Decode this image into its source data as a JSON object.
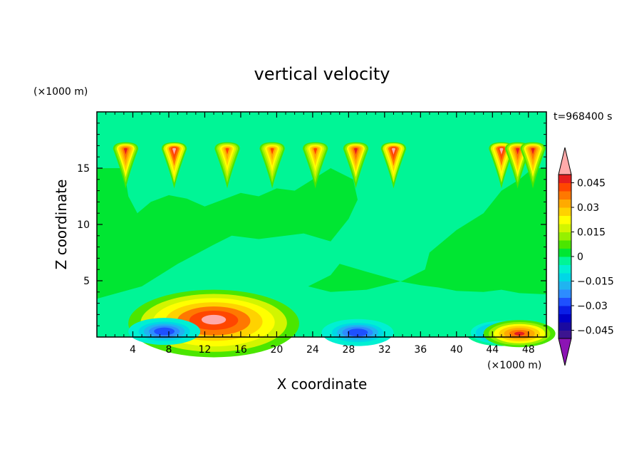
{
  "chart_data": {
    "type": "heatmap",
    "title": "vertical velocity",
    "xlabel": "X coordinate",
    "ylabel": "Z coordinate",
    "x_unit": "(×1000 m)",
    "y_unit": "(×1000 m)",
    "time_label": "t=968400 s",
    "xlim": [
      0,
      50
    ],
    "ylim": [
      0,
      20
    ],
    "x_ticks": [
      4,
      8,
      12,
      16,
      20,
      24,
      28,
      32,
      36,
      40,
      44,
      48
    ],
    "y_ticks": [
      5,
      10,
      15
    ],
    "colorbar": {
      "levels": [
        -0.05,
        -0.045,
        -0.04,
        -0.035,
        -0.03,
        -0.025,
        -0.02,
        -0.015,
        -0.01,
        -0.005,
        0,
        0.005,
        0.01,
        0.015,
        0.02,
        0.025,
        0.03,
        0.035,
        0.04,
        0.045,
        0.05
      ],
      "colors": [
        "#3c1490",
        "#1a0aa0",
        "#0000c8",
        "#0a1ee6",
        "#1e50ff",
        "#2d8cff",
        "#20b4f0",
        "#00d7e6",
        "#00f0d2",
        "#00f596",
        "#00e632",
        "#4be600",
        "#96f000",
        "#d2f500",
        "#ffff00",
        "#ffd200",
        "#ffaa00",
        "#ff7800",
        "#ff4600",
        "#e61e1e"
      ],
      "under_color": "#8c14b4",
      "over_color": "#ffaaaa",
      "tick_values": [
        0.045,
        0.03,
        0.015,
        0,
        -0.015,
        -0.03,
        -0.045
      ],
      "tick_labels": [
        "0.045",
        "0.03",
        "0.015",
        "0",
        "−0.015",
        "−0.03",
        "−0.045"
      ]
    },
    "features": [
      {
        "kind": "updraft",
        "x": 13,
        "z": 1.2,
        "peak": 0.05
      },
      {
        "kind": "downdraft",
        "x": 7.5,
        "z": 0.5,
        "peak": -0.03
      },
      {
        "kind": "downdraft",
        "x": 29,
        "z": 0.4,
        "peak": -0.03
      },
      {
        "kind": "downdraft",
        "x": 45,
        "z": 0.4,
        "peak": -0.025
      },
      {
        "kind": "updraft",
        "x": 47,
        "z": 0.3,
        "peak": 0.045
      },
      {
        "kind": "plume",
        "x": 3.2,
        "z": 16.7,
        "peak": 0.045
      },
      {
        "kind": "plume",
        "x": 8.6,
        "z": 16.7,
        "peak": 0.05
      },
      {
        "kind": "plume",
        "x": 14.5,
        "z": 16.7,
        "peak": 0.04
      },
      {
        "kind": "plume",
        "x": 19.5,
        "z": 16.7,
        "peak": 0.04
      },
      {
        "kind": "plume",
        "x": 24.3,
        "z": 16.7,
        "peak": 0.04
      },
      {
        "kind": "plume",
        "x": 28.8,
        "z": 16.7,
        "peak": 0.045
      },
      {
        "kind": "plume",
        "x": 33.0,
        "z": 16.7,
        "peak": 0.05
      },
      {
        "kind": "plume",
        "x": 45.0,
        "z": 16.7,
        "peak": 0.05
      },
      {
        "kind": "plume",
        "x": 46.8,
        "z": 16.7,
        "peak": 0.045
      },
      {
        "kind": "plume",
        "x": 48.5,
        "z": 16.7,
        "peak": 0.045
      }
    ]
  }
}
